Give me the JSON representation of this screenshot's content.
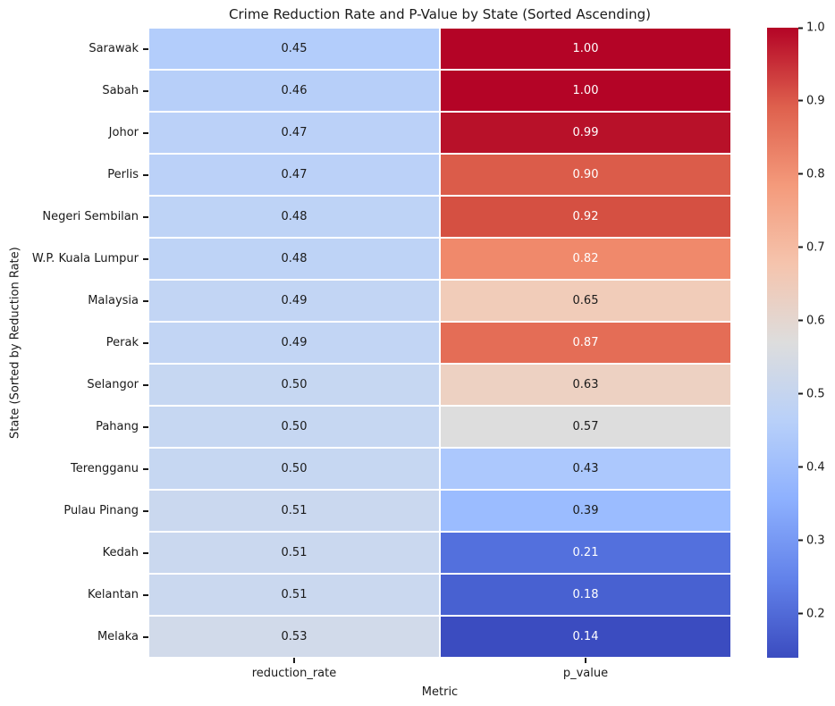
{
  "chart_data": {
    "type": "heatmap",
    "title": "Crime Reduction Rate and P-Value by State (Sorted Ascending)",
    "xlabel": "Metric",
    "ylabel": "State (Sorted by Reduction Rate)",
    "columns": [
      "reduction_rate",
      "p_value"
    ],
    "rows": [
      "Sarawak",
      "Sabah",
      "Johor",
      "Perlis",
      "Negeri Sembilan",
      "W.P. Kuala Lumpur",
      "Malaysia",
      "Perak",
      "Selangor",
      "Pahang",
      "Terengganu",
      "Pulau Pinang",
      "Kedah",
      "Kelantan",
      "Melaka"
    ],
    "values": [
      [
        0.45,
        1.0
      ],
      [
        0.46,
        1.0
      ],
      [
        0.47,
        0.99
      ],
      [
        0.47,
        0.9
      ],
      [
        0.48,
        0.92
      ],
      [
        0.48,
        0.82
      ],
      [
        0.49,
        0.65
      ],
      [
        0.49,
        0.87
      ],
      [
        0.5,
        0.63
      ],
      [
        0.5,
        0.57
      ],
      [
        0.5,
        0.43
      ],
      [
        0.51,
        0.39
      ],
      [
        0.51,
        0.21
      ],
      [
        0.51,
        0.18
      ],
      [
        0.53,
        0.14
      ]
    ],
    "cell_colors": [
      [
        "#B3CDFB",
        "#B40426"
      ],
      [
        "#B7CFF9",
        "#B40426"
      ],
      [
        "#BBD1F8",
        "#B81129"
      ],
      [
        "#BBD1F8",
        "#DB5C4A"
      ],
      [
        "#BED3F6",
        "#D55042"
      ],
      [
        "#BED3F6",
        "#F0896B"
      ],
      [
        "#C2D5F4",
        "#F1CCB9"
      ],
      [
        "#C2D5F4",
        "#E46D56"
      ],
      [
        "#C6D7F2",
        "#EDD1C2"
      ],
      [
        "#C6D7F2",
        "#DDDDDD"
      ],
      [
        "#C6D7F2",
        "#ACC8FD"
      ],
      [
        "#CAD8EF",
        "#9BBCFF"
      ],
      [
        "#CAD8EF",
        "#5370DD"
      ],
      [
        "#CAD8EF",
        "#4861D1"
      ],
      [
        "#D1DAEA",
        "#3B4CC0"
      ]
    ],
    "text_colors": [
      [
        "#1a1a1a",
        "#ffffff"
      ],
      [
        "#1a1a1a",
        "#ffffff"
      ],
      [
        "#1a1a1a",
        "#ffffff"
      ],
      [
        "#1a1a1a",
        "#ffffff"
      ],
      [
        "#1a1a1a",
        "#ffffff"
      ],
      [
        "#1a1a1a",
        "#ffffff"
      ],
      [
        "#1a1a1a",
        "#1a1a1a"
      ],
      [
        "#1a1a1a",
        "#ffffff"
      ],
      [
        "#1a1a1a",
        "#1a1a1a"
      ],
      [
        "#1a1a1a",
        "#1a1a1a"
      ],
      [
        "#1a1a1a",
        "#1a1a1a"
      ],
      [
        "#1a1a1a",
        "#1a1a1a"
      ],
      [
        "#1a1a1a",
        "#ffffff"
      ],
      [
        "#1a1a1a",
        "#ffffff"
      ],
      [
        "#1a1a1a",
        "#ffffff"
      ]
    ],
    "colormap": "coolwarm",
    "vmin": 0.14,
    "vmax": 1.0,
    "grid": false,
    "legend_position": "right",
    "colorbar": {
      "gradient_stops_top_to_bottom": [
        "#B40426",
        "#DE604D",
        "#F49A7B",
        "#F5C4AD",
        "#DDDDDD",
        "#B8D0F9",
        "#8DB0FE",
        "#6282EA",
        "#3B4CC0"
      ],
      "ticks": [
        {
          "label": "1.0",
          "value": 1.0
        },
        {
          "label": "0.9",
          "value": 0.9
        },
        {
          "label": "0.8",
          "value": 0.8
        },
        {
          "label": "0.7",
          "value": 0.7
        },
        {
          "label": "0.6",
          "value": 0.6
        },
        {
          "label": "0.5",
          "value": 0.5
        },
        {
          "label": "0.4",
          "value": 0.4
        },
        {
          "label": "0.3",
          "value": 0.3
        },
        {
          "label": "0.2",
          "value": 0.2
        }
      ]
    }
  }
}
